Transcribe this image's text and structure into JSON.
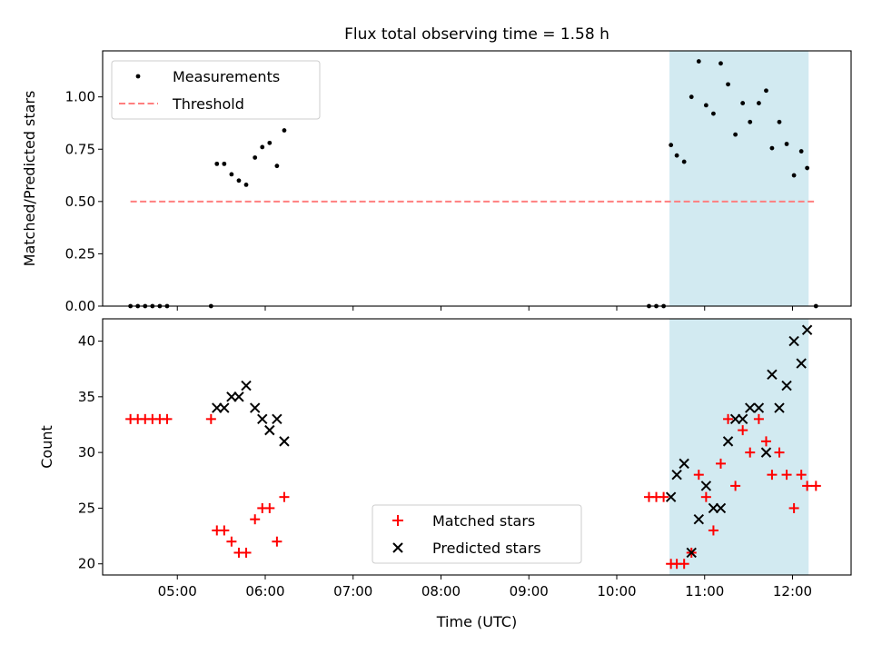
{
  "chart_data": [
    {
      "type": "scatter",
      "title": "Flux total observing time = 1.58 h",
      "xlabel": "",
      "ylabel": "Matched/Predicted stars",
      "xlim": [
        "04:09",
        "12:40"
      ],
      "ylim": [
        0,
        1.22
      ],
      "x_ticks": [
        "05:00",
        "06:00",
        "07:00",
        "08:00",
        "09:00",
        "10:00",
        "11:00",
        "12:00"
      ],
      "x_tick_labels_shown": false,
      "y_ticks": [
        "0.00",
        "0.25",
        "0.50",
        "0.75",
        "1.00"
      ],
      "shaded_interval": {
        "x": [
          "10:36",
          "12:11"
        ],
        "color": "#add8e6"
      },
      "legend": {
        "position": "upper left",
        "entries": [
          "Measurements",
          "Threshold"
        ]
      },
      "series": [
        {
          "name": "Measurements",
          "kind": "scatter",
          "color": "#000000",
          "x": [
            "04:28",
            "04:33",
            "04:38",
            "04:43",
            "04:48",
            "04:53",
            "05:23",
            "05:27",
            "05:32",
            "05:37",
            "05:42",
            "05:47",
            "05:53",
            "05:58",
            "06:03",
            "06:08",
            "06:13",
            "10:22",
            "10:27",
            "10:32",
            "10:37",
            "10:41",
            "10:46",
            "10:51",
            "10:56",
            "11:01",
            "11:06",
            "11:11",
            "11:16",
            "11:21",
            "11:26",
            "11:31",
            "11:37",
            "11:42",
            "11:46",
            "11:51",
            "11:56",
            "12:01",
            "12:06",
            "12:10",
            "12:16"
          ],
          "y": [
            0,
            0,
            0,
            0,
            0,
            0,
            0,
            0.68,
            0.68,
            0.63,
            0.6,
            0.58,
            0.71,
            0.76,
            0.78,
            0.67,
            0.84,
            0,
            0,
            0,
            0.77,
            0.72,
            0.69,
            1.0,
            1.17,
            0.96,
            0.92,
            1.16,
            1.06,
            0.82,
            0.97,
            0.88,
            0.97,
            1.03,
            0.755,
            0.88,
            0.775,
            0.625,
            0.74,
            0.66,
            0
          ]
        },
        {
          "name": "Threshold",
          "kind": "line",
          "style": "dashed",
          "color": "#ff7f7f",
          "x": [
            "04:28",
            "12:16"
          ],
          "y": [
            0.5,
            0.5
          ]
        }
      ]
    },
    {
      "type": "scatter",
      "title": "",
      "xlabel": "Time (UTC)",
      "ylabel": "Count",
      "xlim": [
        "04:09",
        "12:40"
      ],
      "ylim": [
        19,
        42
      ],
      "x_ticks": [
        "05:00",
        "06:00",
        "07:00",
        "08:00",
        "09:00",
        "10:00",
        "11:00",
        "12:00"
      ],
      "y_ticks": [
        "20",
        "25",
        "30",
        "35",
        "40"
      ],
      "shaded_interval": {
        "x": [
          "10:36",
          "12:11"
        ],
        "color": "#add8e6"
      },
      "legend": {
        "position": "lower center",
        "entries": [
          "Matched stars",
          "Predicted stars"
        ]
      },
      "series": [
        {
          "name": "Matched stars",
          "marker": "plus",
          "color": "#ff0000",
          "x": [
            "04:28",
            "04:33",
            "04:38",
            "04:43",
            "04:48",
            "04:53",
            "05:23",
            "05:27",
            "05:32",
            "05:37",
            "05:42",
            "05:47",
            "05:53",
            "05:58",
            "06:03",
            "06:08",
            "06:13",
            "10:22",
            "10:27",
            "10:32",
            "10:37",
            "10:41",
            "10:46",
            "10:51",
            "10:56",
            "11:01",
            "11:06",
            "11:11",
            "11:16",
            "11:21",
            "11:26",
            "11:31",
            "11:37",
            "11:42",
            "11:46",
            "11:51",
            "11:56",
            "12:01",
            "12:06",
            "12:10",
            "12:16"
          ],
          "y": [
            33,
            33,
            33,
            33,
            33,
            33,
            33,
            23,
            23,
            22,
            21,
            21,
            24,
            25,
            25,
            22,
            26,
            26,
            26,
            26,
            20,
            20,
            20,
            21,
            28,
            26,
            23,
            29,
            33,
            27,
            32,
            30,
            33,
            31,
            28,
            30,
            28,
            25,
            28,
            27,
            27
          ]
        },
        {
          "name": "Predicted stars",
          "marker": "x",
          "color": "#000000",
          "x": [
            "05:27",
            "05:32",
            "05:37",
            "05:42",
            "05:47",
            "05:53",
            "05:58",
            "06:03",
            "06:08",
            "06:13",
            "10:37",
            "10:41",
            "10:46",
            "10:51",
            "10:56",
            "11:01",
            "11:06",
            "11:11",
            "11:16",
            "11:21",
            "11:26",
            "11:31",
            "11:37",
            "11:42",
            "11:46",
            "11:51",
            "11:56",
            "12:01",
            "12:06",
            "12:10"
          ],
          "y": [
            34,
            34,
            35,
            35,
            36,
            34,
            33,
            32,
            33,
            31,
            26,
            28,
            29,
            21,
            24,
            27,
            25,
            25,
            31,
            33,
            33,
            34,
            34,
            30,
            37,
            34,
            36,
            40,
            38,
            41
          ]
        }
      ]
    }
  ]
}
